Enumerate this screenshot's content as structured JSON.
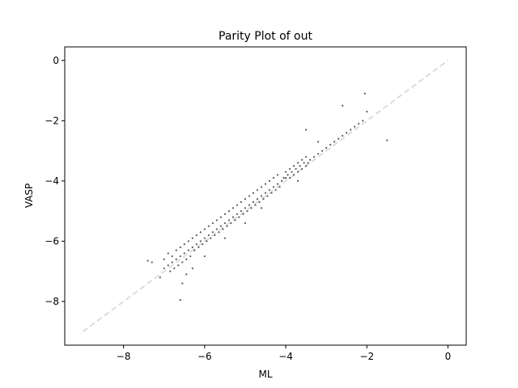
{
  "chart_data": {
    "type": "scatter",
    "title": "Parity Plot of out",
    "xlabel": "ML",
    "ylabel": "VASP",
    "xlim": [
      -9.45,
      0.45
    ],
    "ylim": [
      -9.45,
      0.45
    ],
    "xticks": [
      -8,
      -6,
      -4,
      -2,
      0
    ],
    "yticks": [
      -8,
      -6,
      -4,
      -2,
      0
    ],
    "xtick_labels": [
      "−8",
      "−6",
      "−4",
      "−2",
      "0"
    ],
    "ytick_labels": [
      "−8",
      "−6",
      "−4",
      "−2",
      "0"
    ],
    "grid": false,
    "legend": "none",
    "reference_line": {
      "x": [
        -9,
        0
      ],
      "y": [
        -9,
        0
      ],
      "style": "dashed",
      "color": "#d9d9d9"
    },
    "point_color": "#595959",
    "series": [
      {
        "x": [
          -7.4,
          -7.3,
          -7.1,
          -7.0,
          -7.0,
          -6.9,
          -6.9,
          -6.85,
          -6.8,
          -6.8,
          -6.75,
          -6.7,
          -6.7,
          -6.65,
          -6.6,
          -6.6,
          -6.55,
          -6.5,
          -6.5,
          -6.45,
          -6.4,
          -6.4,
          -6.35,
          -6.3,
          -6.3,
          -6.25,
          -6.2,
          -6.2,
          -6.15,
          -6.1,
          -6.1,
          -6.05,
          -6.0,
          -6.0,
          -5.95,
          -5.9,
          -5.9,
          -5.85,
          -5.8,
          -5.8,
          -5.75,
          -5.7,
          -5.7,
          -5.65,
          -5.6,
          -5.6,
          -5.55,
          -5.5,
          -5.5,
          -5.45,
          -5.4,
          -5.4,
          -5.35,
          -5.3,
          -5.3,
          -5.25,
          -5.2,
          -5.2,
          -5.15,
          -5.1,
          -5.1,
          -5.05,
          -5.0,
          -5.0,
          -4.95,
          -4.9,
          -4.9,
          -4.85,
          -4.8,
          -4.8,
          -4.75,
          -4.7,
          -4.7,
          -4.65,
          -4.6,
          -4.6,
          -4.55,
          -4.5,
          -4.5,
          -4.45,
          -4.4,
          -4.4,
          -4.35,
          -4.3,
          -4.3,
          -4.25,
          -4.2,
          -4.2,
          -4.15,
          -4.1,
          -4.05,
          -4.0,
          -4.0,
          -3.95,
          -3.9,
          -3.9,
          -3.85,
          -3.8,
          -3.8,
          -3.75,
          -3.7,
          -3.7,
          -3.65,
          -3.6,
          -3.6,
          -3.55,
          -3.5,
          -3.5,
          -3.45,
          -3.4,
          -3.3,
          -3.2,
          -3.1,
          -3.0,
          -2.9,
          -2.8,
          -2.7,
          -2.6,
          -2.5,
          -2.4,
          -2.3,
          -2.2,
          -2.1,
          -2.05,
          -1.5,
          -6.6,
          -6.55,
          -6.45,
          -6.3,
          -6.0,
          -5.5,
          -5.0,
          -4.6,
          -3.7,
          -3.5,
          -3.2,
          -2.6,
          -2.0
        ],
        "y": [
          -6.65,
          -6.7,
          -7.2,
          -6.9,
          -6.6,
          -6.8,
          -6.4,
          -7.0,
          -6.7,
          -6.5,
          -6.9,
          -6.6,
          -6.3,
          -6.8,
          -6.5,
          -6.2,
          -6.7,
          -6.4,
          -6.1,
          -6.6,
          -6.3,
          -6.0,
          -6.5,
          -6.2,
          -5.9,
          -6.3,
          -6.1,
          -5.8,
          -6.2,
          -6.0,
          -5.7,
          -6.1,
          -5.9,
          -5.6,
          -6.0,
          -5.8,
          -5.5,
          -5.9,
          -5.7,
          -5.4,
          -5.8,
          -5.6,
          -5.3,
          -5.7,
          -5.5,
          -5.2,
          -5.6,
          -5.4,
          -5.1,
          -5.5,
          -5.3,
          -5.0,
          -5.4,
          -5.2,
          -4.9,
          -5.3,
          -5.1,
          -4.8,
          -5.2,
          -5.0,
          -4.7,
          -5.1,
          -4.9,
          -4.6,
          -5.0,
          -4.8,
          -4.5,
          -4.9,
          -4.7,
          -4.4,
          -4.8,
          -4.6,
          -4.3,
          -4.7,
          -4.5,
          -4.2,
          -4.6,
          -4.4,
          -4.1,
          -4.5,
          -4.3,
          -4.0,
          -4.4,
          -4.2,
          -3.9,
          -4.3,
          -4.1,
          -3.8,
          -4.2,
          -4.0,
          -3.9,
          -3.9,
          -3.7,
          -3.8,
          -3.9,
          -3.6,
          -3.7,
          -3.8,
          -3.5,
          -3.6,
          -3.7,
          -3.4,
          -3.5,
          -3.6,
          -3.3,
          -3.4,
          -3.5,
          -3.2,
          -3.4,
          -3.3,
          -3.2,
          -3.1,
          -3.0,
          -2.9,
          -2.8,
          -2.7,
          -2.6,
          -2.5,
          -2.4,
          -2.3,
          -2.2,
          -2.1,
          -2.0,
          -1.1,
          -2.65,
          -7.95,
          -7.4,
          -7.1,
          -6.9,
          -6.5,
          -5.9,
          -5.4,
          -4.9,
          -4.0,
          -2.3,
          -2.7,
          -1.5,
          -1.7
        ]
      }
    ]
  }
}
